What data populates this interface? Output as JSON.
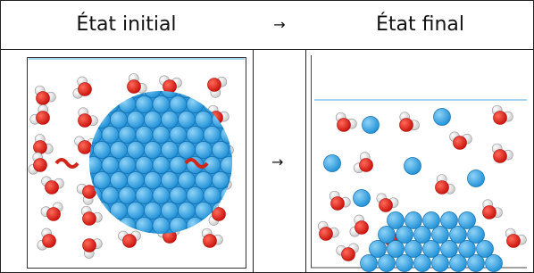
{
  "table": {
    "header": [
      "État initial",
      "→",
      "État final"
    ],
    "arrow": "→"
  }
}
